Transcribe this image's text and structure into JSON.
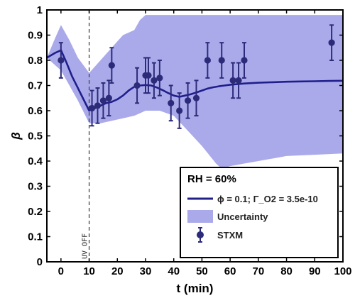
{
  "chart_data": {
    "type": "line",
    "title": "",
    "xlabel": "t (min)",
    "ylabel": "β",
    "xlim": [
      -5,
      100
    ],
    "ylim": [
      0,
      1
    ],
    "xticks": [
      0,
      10,
      20,
      30,
      40,
      50,
      60,
      70,
      80,
      90,
      100
    ],
    "yticks": [
      0,
      0.1,
      0.2,
      0.3,
      0.4,
      0.5,
      0.6,
      0.7,
      0.8,
      0.9,
      1
    ],
    "grid": false,
    "legend_position": "lower-right",
    "legend_title": "RH = 60%",
    "annotation": {
      "text": "UV OFF",
      "x": 10
    },
    "series": [
      {
        "name": "ϕ = 0.1; Γ_O2 = 3.5e-10",
        "type": "line",
        "color": "#1f1f8c",
        "x": [
          -5,
          -2,
          0,
          2,
          4,
          6,
          8,
          10,
          12,
          14,
          16,
          18,
          20,
          22,
          24,
          26,
          28,
          30,
          32,
          34,
          36,
          38,
          40,
          42,
          44,
          46,
          48,
          50,
          52,
          54,
          56,
          58,
          60,
          65,
          70,
          75,
          80,
          85,
          90,
          95,
          100
        ],
        "y": [
          0.81,
          0.83,
          0.84,
          0.79,
          0.735,
          0.69,
          0.645,
          0.6,
          0.61,
          0.62,
          0.63,
          0.635,
          0.645,
          0.66,
          0.68,
          0.695,
          0.7,
          0.702,
          0.7,
          0.692,
          0.682,
          0.67,
          0.66,
          0.655,
          0.66,
          0.665,
          0.672,
          0.68,
          0.688,
          0.693,
          0.697,
          0.7,
          0.703,
          0.708,
          0.711,
          0.713,
          0.715,
          0.716,
          0.717,
          0.718,
          0.719
        ]
      },
      {
        "name": "Uncertainty",
        "type": "area",
        "color": "#aaaaeb",
        "x": [
          -5,
          -2,
          0,
          3,
          6,
          10,
          14,
          18,
          22,
          26,
          28,
          30,
          35,
          40,
          45,
          50,
          55,
          57,
          60,
          65,
          70,
          75,
          80,
          90,
          100
        ],
        "upper": [
          0.81,
          0.89,
          0.94,
          0.88,
          0.81,
          0.75,
          0.8,
          0.85,
          0.9,
          0.92,
          0.96,
          0.98,
          0.98,
          0.98,
          0.98,
          0.98,
          0.98,
          0.98,
          0.98,
          0.98,
          0.98,
          0.98,
          0.98,
          0.98,
          0.98
        ],
        "lower": [
          0.81,
          0.78,
          0.76,
          0.7,
          0.64,
          0.55,
          0.55,
          0.56,
          0.57,
          0.58,
          0.59,
          0.6,
          0.6,
          0.58,
          0.52,
          0.46,
          0.39,
          0.37,
          0.38,
          0.39,
          0.4,
          0.41,
          0.42,
          0.425,
          0.43
        ]
      },
      {
        "name": "STXM",
        "type": "scatter",
        "color": "#2b2b7a",
        "x": [
          0,
          11,
          13,
          15,
          17,
          18,
          27,
          30,
          31,
          33,
          35,
          39,
          42,
          45,
          48,
          52,
          57,
          61,
          63,
          65,
          96
        ],
        "y": [
          0.8,
          0.61,
          0.62,
          0.64,
          0.65,
          0.78,
          0.7,
          0.74,
          0.74,
          0.72,
          0.73,
          0.63,
          0.6,
          0.64,
          0.65,
          0.8,
          0.8,
          0.72,
          0.72,
          0.8,
          0.87
        ],
        "error": [
          0.07,
          0.07,
          0.07,
          0.07,
          0.07,
          0.07,
          0.07,
          0.07,
          0.07,
          0.07,
          0.07,
          0.07,
          0.07,
          0.07,
          0.07,
          0.07,
          0.07,
          0.07,
          0.07,
          0.07,
          0.07
        ]
      }
    ]
  }
}
